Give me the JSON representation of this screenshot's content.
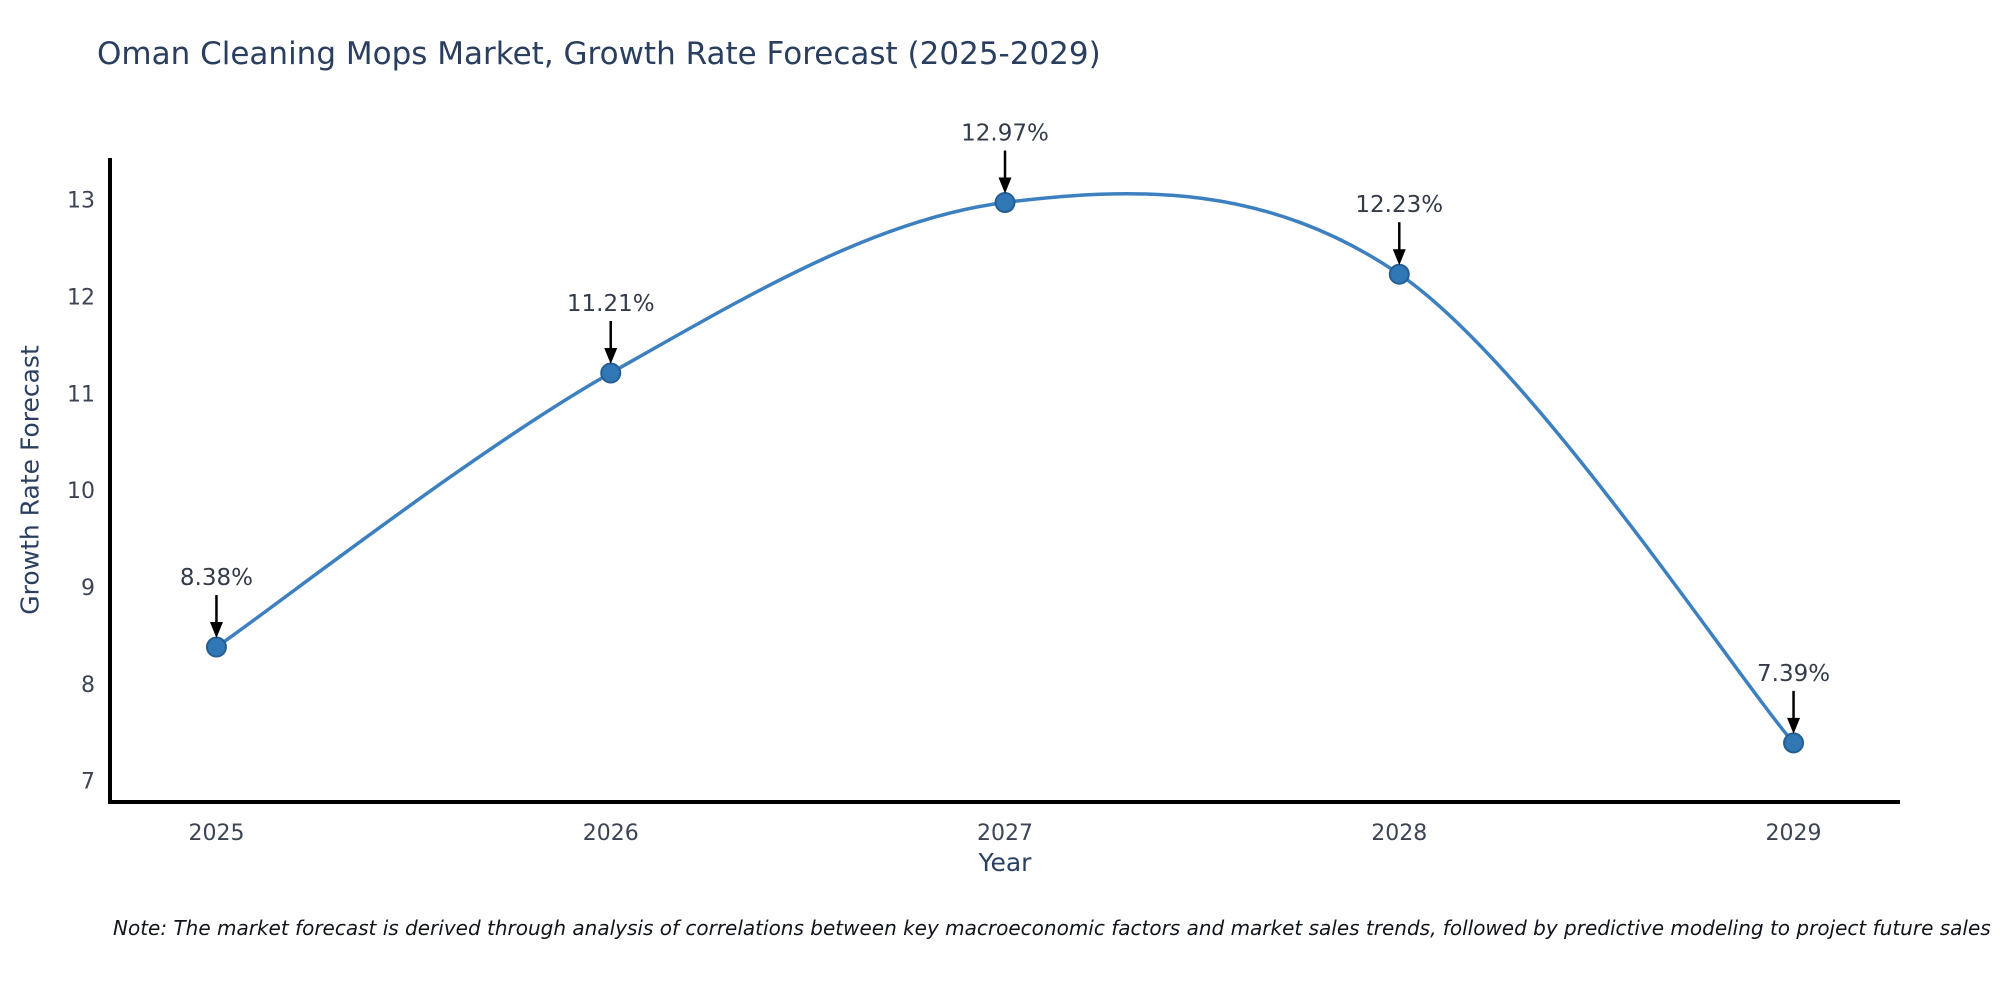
{
  "figure": {
    "title": "Oman Cleaning Mops Market, Growth Rate Forecast (2025-2029)",
    "note": "Note: The market forecast is derived through analysis of correlations between key macroeconomic factors and market sales trends, followed by predictive modeling to project future sales"
  },
  "chart_data": {
    "type": "line",
    "title": "Oman Cleaning Mops Market, Growth Rate Forecast (2025-2029)",
    "xlabel": "Year",
    "ylabel": "Growth Rate Forecast",
    "x": [
      2025,
      2026,
      2027,
      2028,
      2029
    ],
    "values": [
      8.38,
      11.21,
      12.97,
      12.23,
      7.39
    ],
    "point_labels": [
      "8.38%",
      "11.21%",
      "12.97%",
      "12.23%",
      "7.39%"
    ],
    "xticks": [
      "2025",
      "2026",
      "2027",
      "2028",
      "2029"
    ],
    "yticks": [
      7,
      8,
      9,
      10,
      11,
      12,
      13
    ],
    "xlim": [
      2024.73,
      2029.27
    ],
    "ylim": [
      6.78,
      13.43
    ],
    "grid": false,
    "legend_position": "none",
    "curve_style": "smooth-spline",
    "annotation": "black arrows pointing down to each data point with percentage labels above",
    "colors": {
      "line": "#3d80c0",
      "marker_fill": "#3077b6",
      "marker_edge": "#275e91",
      "axis": "#000000",
      "annotation_arrow": "#000000",
      "title_text": "#2a3f5f",
      "tick_text": "#3c4454",
      "note_text": "#10151c"
    }
  }
}
